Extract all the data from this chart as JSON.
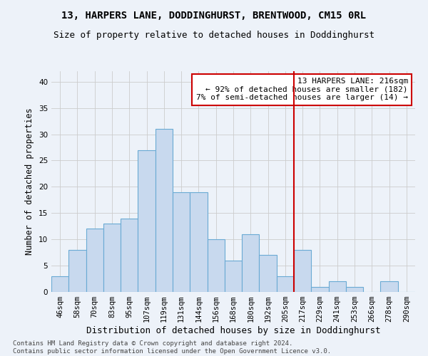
{
  "title1": "13, HARPERS LANE, DODDINGHURST, BRENTWOOD, CM15 0RL",
  "title2": "Size of property relative to detached houses in Doddinghurst",
  "xlabel": "Distribution of detached houses by size in Doddinghurst",
  "ylabel": "Number of detached properties",
  "bar_color": "#c8d9ee",
  "bar_edge_color": "#6aaad4",
  "categories": [
    "46sqm",
    "58sqm",
    "70sqm",
    "83sqm",
    "95sqm",
    "107sqm",
    "119sqm",
    "131sqm",
    "144sqm",
    "156sqm",
    "168sqm",
    "180sqm",
    "192sqm",
    "205sqm",
    "217sqm",
    "229sqm",
    "241sqm",
    "253sqm",
    "266sqm",
    "278sqm",
    "290sqm"
  ],
  "values": [
    3,
    8,
    12,
    13,
    14,
    27,
    31,
    19,
    19,
    10,
    6,
    11,
    7,
    3,
    8,
    1,
    2,
    1,
    0,
    2,
    0
  ],
  "ylim": [
    0,
    42
  ],
  "yticks": [
    0,
    5,
    10,
    15,
    20,
    25,
    30,
    35,
    40
  ],
  "property_line_index": 14,
  "property_line_color": "#cc0000",
  "annotation_line1": "13 HARPERS LANE: 216sqm",
  "annotation_line2": "← 92% of detached houses are smaller (182)",
  "annotation_line3": "7% of semi-detached houses are larger (14) →",
  "annotation_box_color": "#ffffff",
  "annotation_border_color": "#cc0000",
  "footer": "Contains HM Land Registry data © Crown copyright and database right 2024.\nContains public sector information licensed under the Open Government Licence v3.0.",
  "grid_color": "#cccccc",
  "background_color": "#edf2f9",
  "title1_fontsize": 10,
  "title2_fontsize": 9,
  "xlabel_fontsize": 9,
  "ylabel_fontsize": 8.5,
  "tick_fontsize": 7.5,
  "annotation_fontsize": 8,
  "footer_fontsize": 6.5
}
